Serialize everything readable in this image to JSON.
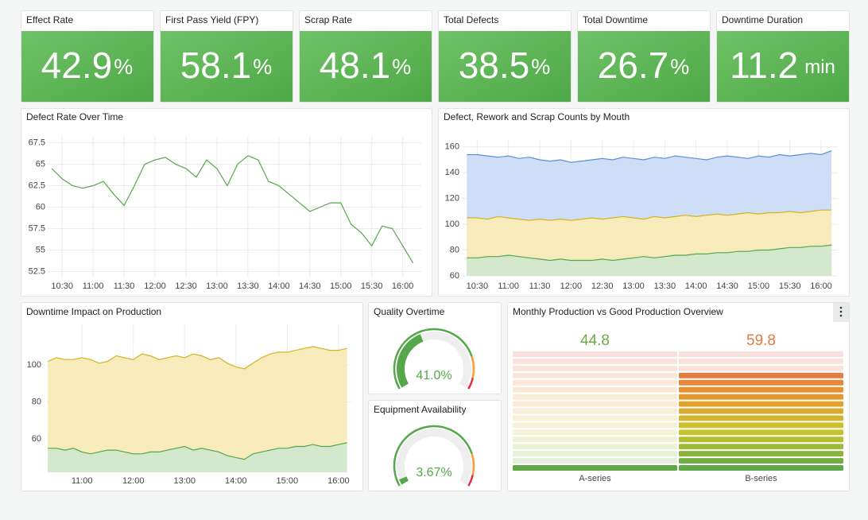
{
  "stats": [
    {
      "title": "Effect Rate",
      "value": 42.9,
      "unit": "%"
    },
    {
      "title": "First Pass Yield (FPY)",
      "value": 58.1,
      "unit": "%"
    },
    {
      "title": "Scrap Rate",
      "value": 48.1,
      "unit": "%"
    },
    {
      "title": "Total Defects",
      "value": 38.5,
      "unit": "%"
    },
    {
      "title": "Total Downtime",
      "value": 26.7,
      "unit": "%"
    },
    {
      "title": "Downtime Duration",
      "value": 11.2,
      "unit": "min"
    }
  ],
  "defect_rate": {
    "type": "line",
    "title": "Defect Rate Over Time",
    "x": [
      "10:20",
      "10:30",
      "10:40",
      "10:50",
      "11:00",
      "11:10",
      "11:20",
      "11:30",
      "11:40",
      "11:50",
      "12:00",
      "12:10",
      "12:20",
      "12:30",
      "12:40",
      "12:50",
      "13:00",
      "13:10",
      "13:20",
      "13:30",
      "13:40",
      "13:50",
      "14:00",
      "14:10",
      "14:20",
      "14:30",
      "14:40",
      "14:50",
      "15:00",
      "15:10",
      "15:20",
      "15:30",
      "15:40",
      "15:50",
      "16:00",
      "16:10"
    ],
    "series": [
      {
        "color": "#56a64b",
        "values": [
          64.5,
          63.3,
          62.5,
          62.2,
          62.5,
          63,
          61.5,
          60.2,
          62.5,
          65,
          65.5,
          65.8,
          65,
          64.5,
          63.5,
          65.5,
          64.5,
          62.5,
          65,
          66,
          65.5,
          63,
          62.5,
          61.5,
          60.5,
          59.5,
          60,
          60.5,
          60.5,
          58,
          57,
          55.5,
          57.8,
          57.5,
          55.5,
          53.5
        ]
      }
    ],
    "xlim": [
      "10:16",
      "16:18"
    ],
    "xticks": [
      "10:30",
      "11:00",
      "11:30",
      "12:00",
      "12:30",
      "13:00",
      "13:30",
      "14:00",
      "14:30",
      "15:00",
      "15:30",
      "16:00"
    ],
    "ylim": [
      51.9,
      68.2
    ],
    "yticks": [
      52.5,
      55,
      57.5,
      60,
      62.5,
      65,
      67.5
    ],
    "grid": true
  },
  "counts": {
    "type": "area",
    "title": "Defect, Rework and Scrap Counts by Mouth",
    "x": [
      "10:20",
      "10:30",
      "10:40",
      "10:50",
      "11:00",
      "11:10",
      "11:20",
      "11:30",
      "11:40",
      "11:50",
      "12:00",
      "12:10",
      "12:20",
      "12:30",
      "12:40",
      "12:50",
      "13:00",
      "13:10",
      "13:20",
      "13:30",
      "13:40",
      "13:50",
      "14:00",
      "14:10",
      "14:20",
      "14:30",
      "14:40",
      "14:50",
      "15:00",
      "15:10",
      "15:20",
      "15:30",
      "15:40",
      "15:50",
      "16:00",
      "16:10"
    ],
    "series": [
      {
        "color": "#5b8fd6",
        "fill": "#cfdef7",
        "values": [
          154,
          154,
          153,
          152,
          153,
          151,
          152,
          150,
          149,
          150,
          148,
          149,
          150,
          151,
          150,
          152,
          151,
          150,
          152,
          151,
          153,
          152,
          151,
          150,
          152,
          153,
          152,
          151,
          153,
          152,
          154,
          153,
          154,
          155,
          154,
          157
        ]
      },
      {
        "color": "#d4b320",
        "fill": "#f7ebbb",
        "values": [
          105,
          105,
          104,
          106,
          105,
          104,
          103,
          104,
          103,
          104,
          103,
          104,
          105,
          104,
          105,
          106,
          105,
          104,
          106,
          105,
          106,
          107,
          106,
          107,
          108,
          107,
          108,
          109,
          108,
          109,
          109,
          110,
          109,
          110,
          111,
          111
        ]
      },
      {
        "color": "#56a64b",
        "fill": "#d3e8cc",
        "values": [
          74,
          74,
          75,
          75,
          76,
          75,
          74,
          73,
          72,
          73,
          72,
          72,
          72,
          73,
          72,
          73,
          74,
          75,
          74,
          75,
          76,
          76,
          77,
          77,
          78,
          78,
          79,
          79,
          80,
          80,
          81,
          82,
          82,
          83,
          83,
          84
        ]
      }
    ],
    "xlim": [
      "10:16",
      "16:16"
    ],
    "xticks": [
      "10:30",
      "11:00",
      "11:30",
      "12:00",
      "12:30",
      "13:00",
      "13:30",
      "14:00",
      "14:30",
      "15:00",
      "15:30",
      "16:00"
    ],
    "ylim": [
      60,
      166
    ],
    "yticks": [
      60,
      80,
      100,
      120,
      140,
      160
    ],
    "grid": true
  },
  "downtime": {
    "type": "area",
    "title": "Downtime Impact on Production",
    "x": [
      "10:20",
      "10:30",
      "10:40",
      "10:50",
      "11:00",
      "11:10",
      "11:20",
      "11:30",
      "11:40",
      "11:50",
      "12:00",
      "12:10",
      "12:20",
      "12:30",
      "12:40",
      "12:50",
      "13:00",
      "13:10",
      "13:20",
      "13:30",
      "13:40",
      "13:50",
      "14:00",
      "14:10",
      "14:20",
      "14:30",
      "14:40",
      "14:50",
      "15:00",
      "15:10",
      "15:20",
      "15:30",
      "15:40",
      "15:50",
      "16:00",
      "16:10"
    ],
    "series": [
      {
        "color": "#d4b320",
        "fill": "#f7ebbb",
        "values": [
          102,
          104,
          103,
          103,
          104,
          103,
          101,
          102,
          105,
          104,
          103,
          106,
          105,
          103,
          104,
          105,
          104,
          106,
          105,
          103,
          104,
          101,
          99,
          98,
          101,
          104,
          106,
          107,
          107,
          108,
          109,
          110,
          109,
          108,
          108,
          109
        ]
      },
      {
        "color": "#56a64b",
        "fill": "#d3e8cc",
        "values": [
          55,
          55,
          54,
          55,
          53,
          52,
          53,
          54,
          54,
          53,
          52,
          52,
          53,
          53,
          54,
          55,
          56,
          54,
          55,
          54,
          53,
          51,
          50,
          49,
          52,
          53,
          54,
          55,
          55,
          56,
          56,
          57,
          56,
          56,
          57,
          58
        ]
      }
    ],
    "xlim": [
      "10:18",
      "16:15"
    ],
    "xticks": [
      "11:00",
      "12:00",
      "13:00",
      "14:00",
      "15:00",
      "16:00"
    ],
    "ylim": [
      42,
      122
    ],
    "yticks": [
      60,
      80,
      100
    ],
    "grid": true
  },
  "gauges": [
    {
      "type": "gauge",
      "title": "Quality Overtime",
      "value": 41,
      "value_label": "41.0",
      "unit": "%",
      "range": [
        0,
        100
      ],
      "color": "#56a64b",
      "thresholds": [
        {
          "value": 0,
          "color": "#56a64b"
        },
        {
          "value": 80,
          "color": "#ff9830"
        },
        {
          "value": 93,
          "color": "#e02f44"
        }
      ]
    },
    {
      "type": "gauge",
      "title": "Equipment Availability",
      "value": 3.67,
      "unit": "%",
      "range": [
        0,
        100
      ],
      "color": "#56a64b",
      "thresholds": [
        {
          "value": 0,
          "color": "#56a64b"
        },
        {
          "value": 80,
          "color": "#ff9830"
        },
        {
          "value": 93,
          "color": "#e02f44"
        }
      ]
    }
  ],
  "bar_gauge": {
    "type": "bargauge",
    "title": "Monthly Production vs Good Production Overview",
    "categories": [
      "A-series",
      "B-series"
    ],
    "values": [
      44.8,
      59.8
    ],
    "range": [
      43.6,
      63.3
    ],
    "scale_colors": [
      "#56a64b",
      "#c9c42c",
      "#e8912d",
      "#e05b5b"
    ]
  }
}
